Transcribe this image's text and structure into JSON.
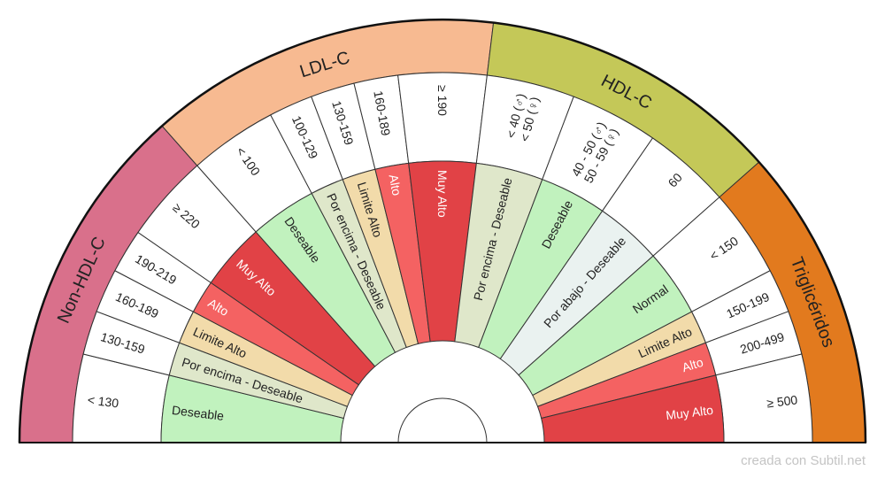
{
  "credit": "creada con Subtil.net",
  "colors": {
    "stroke": "#333333",
    "outline": "#111111",
    "range_fill": "#ffffff",
    "text": "#222222",
    "credit": "#c4c4c4"
  },
  "category_styles": {
    "Deseable": {
      "fill": "#c1f2be",
      "text": "#222222"
    },
    "Por encima - Deseable": {
      "fill": "#dfe7ca",
      "text": "#222222"
    },
    "Limite Alto": {
      "fill": "#f2dbaa",
      "text": "#222222"
    },
    "Alto": {
      "fill": "#f46262",
      "text": "#ffffff"
    },
    "Muy Alto": {
      "fill": "#e14246",
      "text": "#ffffff"
    },
    "Por abajo - Deseable": {
      "fill": "#eaf2f0",
      "text": "#222222"
    },
    "Normal": {
      "fill": "#c1f2be",
      "text": "#222222"
    }
  },
  "chart_data": {
    "type": "pie",
    "groups": [
      {
        "name": "Non-HDL-C",
        "color": "#d9708b",
        "ranges": [
          {
            "label": [
              "< 130"
            ],
            "category": "Deseable",
            "value": 2
          },
          {
            "label": [
              "130-159"
            ],
            "category": "Por encima - Deseable",
            "value": 1
          },
          {
            "label": [
              "160-189"
            ],
            "category": "Limite Alto",
            "value": 1
          },
          {
            "label": [
              "190-219"
            ],
            "category": "Alto",
            "value": 1
          },
          {
            "label": [
              "≥ 220"
            ],
            "category": "Muy Alto",
            "value": 2
          }
        ]
      },
      {
        "name": "LDL-C",
        "color": "#f7ba91",
        "ranges": [
          {
            "label": [
              "< 100"
            ],
            "category": "Deseable",
            "value": 2
          },
          {
            "label": [
              "100-129"
            ],
            "category": "Por encima - Deseable",
            "value": 1
          },
          {
            "label": [
              "130-159"
            ],
            "category": "Limite Alto",
            "value": 1
          },
          {
            "label": [
              "160-189"
            ],
            "category": "Alto",
            "value": 1
          },
          {
            "label": [
              "≥ 190"
            ],
            "category": "Muy Alto",
            "value": 2
          }
        ]
      },
      {
        "name": "HDL-C",
        "color": "#c4c858",
        "ranges": [
          {
            "label": [
              "< 40 (♂)",
              "< 50 (♀)"
            ],
            "category": "Por encima - Deseable",
            "value": 2
          },
          {
            "label": [
              "40 - 50 (♂)",
              "50 - 59 (♀)"
            ],
            "category": "Deseable",
            "value": 2
          },
          {
            "label": [
              "60"
            ],
            "category": "Por abajo - Deseable",
            "value": 2
          }
        ]
      },
      {
        "name": "Triglicéridos",
        "color": "#e27a1e",
        "ranges": [
          {
            "label": [
              "< 150"
            ],
            "category": "Normal",
            "value": 2
          },
          {
            "label": [
              "150-199"
            ],
            "category": "Limite Alto",
            "value": 1
          },
          {
            "label": [
              "200-499"
            ],
            "category": "Alto",
            "value": 1
          },
          {
            "label": [
              "≥ 500"
            ],
            "category": "Muy Alto",
            "value": 2
          }
        ]
      }
    ]
  }
}
